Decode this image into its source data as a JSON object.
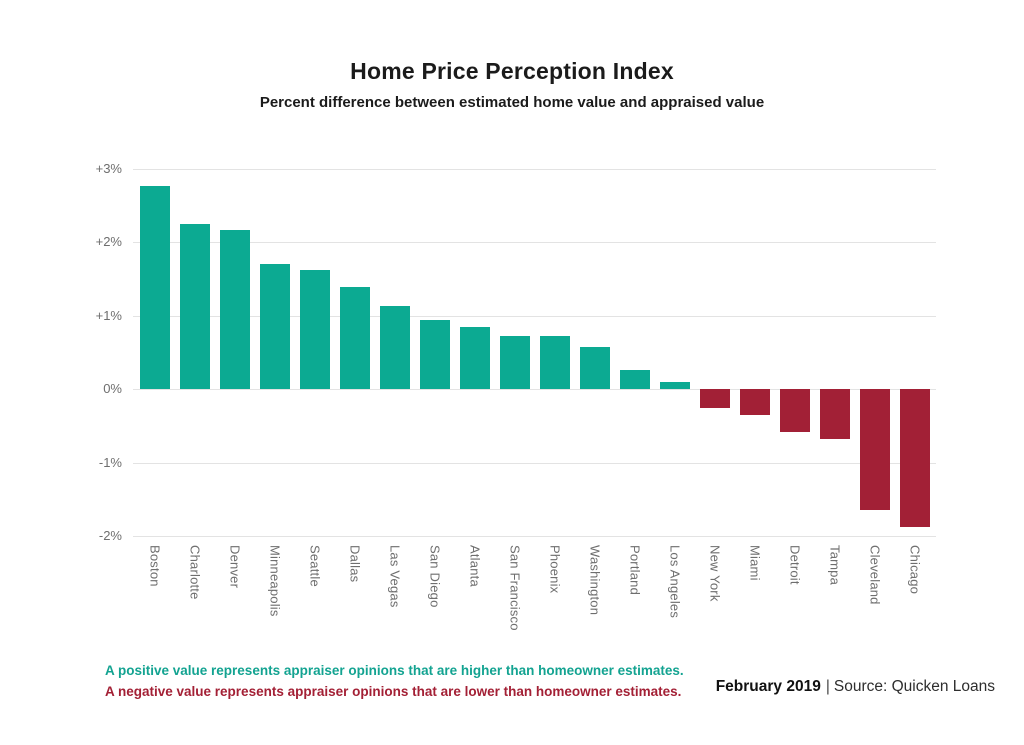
{
  "header": {
    "title": "Home Price Perception Index",
    "subtitle": "Percent difference between estimated home value and appraised value"
  },
  "chart_data": {
    "type": "bar",
    "categories": [
      "Boston",
      "Charlotte",
      "Denver",
      "Minneapolis",
      "Seattle",
      "Dallas",
      "Las Vegas",
      "San Diego",
      "Atlanta",
      "San Francisco",
      "Phoenix",
      "Washington",
      "Portland",
      "Los Angeles",
      "New York",
      "Miami",
      "Detroit",
      "Tampa",
      "Cleveland",
      "Chicago"
    ],
    "values": [
      2.77,
      2.25,
      2.17,
      1.7,
      1.63,
      1.39,
      1.13,
      0.94,
      0.85,
      0.73,
      0.72,
      0.58,
      0.26,
      0.1,
      -0.25,
      -0.35,
      -0.59,
      -0.68,
      -1.65,
      -1.88
    ],
    "title": "Home Price Perception Index",
    "subtitle": "Percent difference between estimated home value and appraised value",
    "xlabel": "",
    "ylabel": "",
    "ylim": [
      -2,
      3
    ],
    "yticks": {
      "labels": [
        "+3%",
        "+2%",
        "+1%",
        "0%",
        "-1%",
        "-2%"
      ],
      "values": [
        3,
        2,
        1,
        0,
        -1,
        -2
      ]
    },
    "grid": true,
    "legend": false,
    "positive_color": "#0caa92",
    "negative_color": "#a22036",
    "label_color": "#6e6e6e",
    "gridline_color": "#e3e3e3"
  },
  "notes": {
    "positive": "A positive value represents appraiser opinions that are higher than homeowner estimates.",
    "negative": "A negative value represents appraiser opinions that are lower than homeowner estimates."
  },
  "footer": {
    "date": "February 2019",
    "separator": "|",
    "source": "Source: Quicken Loans"
  }
}
